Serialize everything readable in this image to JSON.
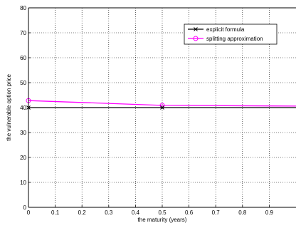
{
  "chart_data": {
    "type": "line",
    "title": "",
    "xlabel": "the maturity (years)",
    "ylabel": "the vulnerable option price",
    "xlim": [
      0,
      1
    ],
    "ylim": [
      0,
      80
    ],
    "x_ticks": [
      0,
      0.1,
      0.2,
      0.3,
      0.4,
      0.5,
      0.6,
      0.7,
      0.8,
      0.9
    ],
    "y_ticks": [
      0,
      10,
      20,
      30,
      40,
      50,
      60,
      70,
      80
    ],
    "grid": true,
    "legend_position": "top-right",
    "series": [
      {
        "name": "explicit formula",
        "color": "#000000",
        "marker": "x",
        "x": [
          0,
          0.5,
          1
        ],
        "y": [
          40.0,
          40.0,
          40.0
        ]
      },
      {
        "name": "splitting approximation",
        "color": "#ff00ff",
        "marker": "o",
        "x": [
          0,
          0.5,
          1
        ],
        "y": [
          42.8,
          40.9,
          40.6
        ]
      }
    ]
  }
}
